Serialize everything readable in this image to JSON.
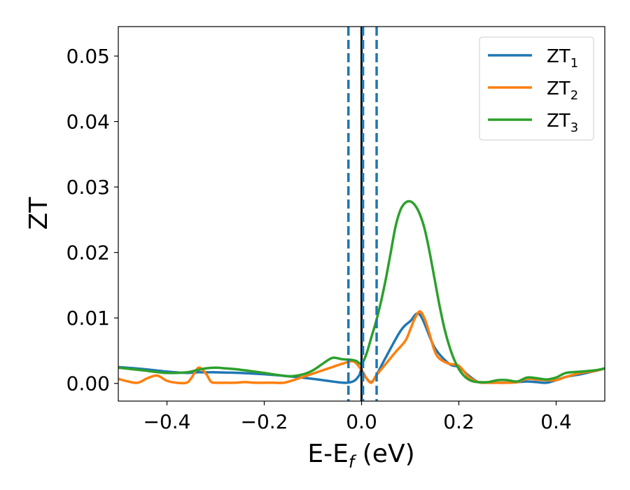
{
  "chart_data": {
    "type": "line",
    "title": "",
    "xlabel": "E-E",
    "xlabel_sub": "f",
    "xlabel_suffix": " (eV)",
    "ylabel": "ZT",
    "xlim": [
      -0.5,
      0.5
    ],
    "ylim": [
      -0.0027,
      0.0545
    ],
    "xticks": [
      -0.4,
      -0.2,
      0.0,
      0.2,
      0.4
    ],
    "xtick_labels": [
      "−0.4",
      "−0.2",
      "0.0",
      "0.2",
      "0.4"
    ],
    "yticks": [
      0.0,
      0.01,
      0.02,
      0.03,
      0.04,
      0.05
    ],
    "ytick_labels": [
      "0.00",
      "0.01",
      "0.02",
      "0.03",
      "0.04",
      "0.05"
    ],
    "grid": false,
    "legend_position": "top-right",
    "vlines": [
      {
        "x": 0.0,
        "style": "solid",
        "color": "#000000"
      },
      {
        "x": -0.027,
        "style": "dashed",
        "color": "#1f77b4"
      },
      {
        "x": 0.003,
        "style": "dashed",
        "color": "#1f77b4"
      },
      {
        "x": 0.031,
        "style": "dashed",
        "color": "#1f77b4"
      }
    ],
    "series": [
      {
        "name": "ZT",
        "name_sub": "1",
        "color": "#1f77b4",
        "x": [
          -0.5,
          -0.45,
          -0.4,
          -0.36,
          -0.34,
          -0.32,
          -0.3,
          -0.25,
          -0.2,
          -0.15,
          -0.1,
          -0.07,
          -0.05,
          -0.03,
          -0.015,
          -0.005,
          0.0,
          0.01,
          0.02,
          0.03,
          0.05,
          0.08,
          0.1,
          0.12,
          0.15,
          0.18,
          0.2,
          0.22,
          0.24,
          0.26,
          0.28,
          0.3,
          0.32,
          0.34,
          0.36,
          0.38,
          0.4,
          0.42,
          0.45,
          0.48,
          0.5
        ],
        "y": [
          0.0025,
          0.0022,
          0.0018,
          0.0016,
          0.0017,
          0.0017,
          0.0017,
          0.0016,
          0.0014,
          0.0011,
          0.0007,
          0.0004,
          0.0002,
          0.0001,
          0.0004,
          0.0012,
          0.002,
          0.0008,
          0.0002,
          0.0012,
          0.004,
          0.008,
          0.0095,
          0.0105,
          0.0055,
          0.003,
          0.0025,
          0.0012,
          0.0002,
          0.0001,
          0.0001,
          0.0001,
          0.0002,
          0.0003,
          0.0002,
          0.0001,
          0.0005,
          0.001,
          0.0014,
          0.0019,
          0.0023
        ]
      },
      {
        "name": "ZT",
        "name_sub": "2",
        "color": "#ff7f0e",
        "x": [
          -0.5,
          -0.48,
          -0.46,
          -0.44,
          -0.42,
          -0.4,
          -0.38,
          -0.36,
          -0.35,
          -0.335,
          -0.32,
          -0.31,
          -0.3,
          -0.28,
          -0.26,
          -0.24,
          -0.22,
          -0.2,
          -0.18,
          -0.16,
          -0.14,
          -0.12,
          -0.1,
          -0.08,
          -0.06,
          -0.04,
          -0.02,
          -0.01,
          0.0,
          0.01,
          0.02,
          0.03,
          0.05,
          0.07,
          0.09,
          0.1,
          0.11,
          0.12,
          0.13,
          0.14,
          0.15,
          0.16,
          0.18,
          0.2,
          0.22,
          0.24,
          0.26,
          0.28,
          0.3,
          0.32,
          0.34,
          0.36,
          0.38,
          0.4,
          0.42,
          0.45,
          0.48,
          0.5
        ],
        "y": [
          0.0007,
          0.0003,
          0.0001,
          0.0008,
          0.0012,
          0.0004,
          0.0001,
          0.0001,
          0.0008,
          0.0024,
          0.0015,
          0.0003,
          0.0001,
          0.0001,
          0.0001,
          0.0002,
          0.0001,
          0.0001,
          0.0001,
          0.0001,
          0.0005,
          0.001,
          0.0015,
          0.002,
          0.0025,
          0.003,
          0.0034,
          0.003,
          0.002,
          0.0008,
          0.0001,
          0.0012,
          0.003,
          0.0048,
          0.0065,
          0.0082,
          0.01,
          0.011,
          0.0098,
          0.0075,
          0.005,
          0.0038,
          0.003,
          0.0027,
          0.001,
          0.0002,
          0.0001,
          0.0001,
          0.0001,
          0.0002,
          0.0007,
          0.0006,
          0.0005,
          0.0005,
          0.001,
          0.0016,
          0.0019,
          0.0023
        ]
      },
      {
        "name": "ZT",
        "name_sub": "3",
        "color": "#2ca02c",
        "x": [
          -0.5,
          -0.45,
          -0.4,
          -0.36,
          -0.34,
          -0.32,
          -0.3,
          -0.28,
          -0.25,
          -0.2,
          -0.15,
          -0.12,
          -0.1,
          -0.08,
          -0.06,
          -0.04,
          -0.02,
          -0.01,
          0.0,
          0.01,
          0.02,
          0.03,
          0.04,
          0.05,
          0.06,
          0.07,
          0.08,
          0.09,
          0.1,
          0.11,
          0.12,
          0.13,
          0.14,
          0.15,
          0.16,
          0.17,
          0.18,
          0.19,
          0.2,
          0.21,
          0.22,
          0.23,
          0.24,
          0.26,
          0.28,
          0.3,
          0.32,
          0.34,
          0.36,
          0.38,
          0.4,
          0.42,
          0.45,
          0.48,
          0.5
        ],
        "y": [
          0.0024,
          0.002,
          0.0016,
          0.0017,
          0.002,
          0.0023,
          0.0024,
          0.0023,
          0.0021,
          0.0016,
          0.0011,
          0.0014,
          0.002,
          0.003,
          0.0039,
          0.0037,
          0.0036,
          0.0034,
          0.003,
          0.0045,
          0.007,
          0.0095,
          0.0125,
          0.016,
          0.02,
          0.024,
          0.0265,
          0.0276,
          0.0278,
          0.0272,
          0.0258,
          0.0235,
          0.02,
          0.016,
          0.012,
          0.0085,
          0.0058,
          0.0037,
          0.0022,
          0.0012,
          0.0006,
          0.0003,
          0.0002,
          0.0002,
          0.0005,
          0.0005,
          0.0003,
          0.0009,
          0.0008,
          0.0006,
          0.0009,
          0.0016,
          0.0018,
          0.002,
          0.0023
        ]
      }
    ]
  }
}
